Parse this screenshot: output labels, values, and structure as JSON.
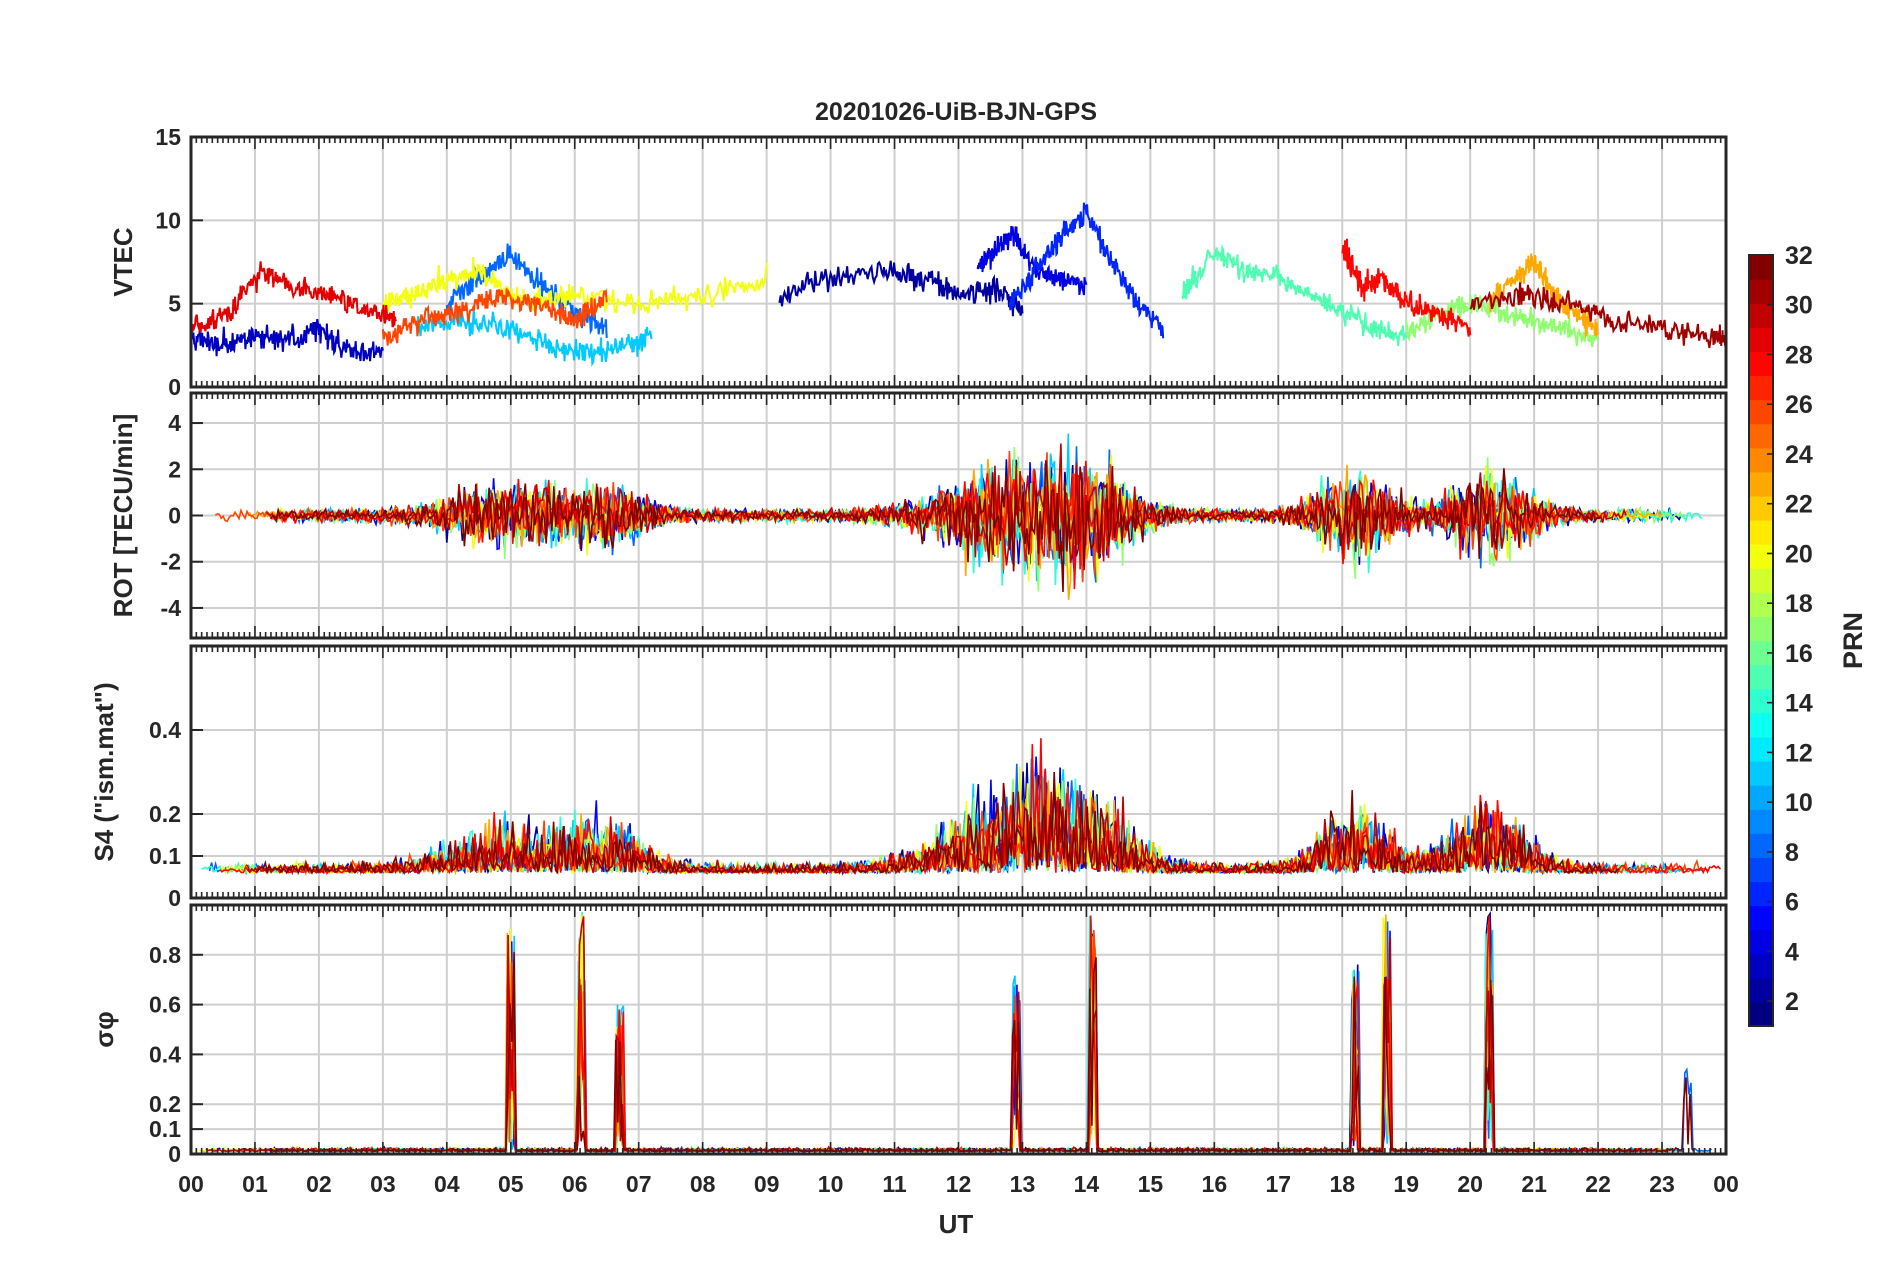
{
  "chart_data": {
    "type": "line",
    "title": "20201026-UiB-BJN-GPS",
    "xlabel": "UT",
    "x_range_hours": [
      0,
      24
    ],
    "x_ticks": [
      "00",
      "01",
      "02",
      "03",
      "04",
      "05",
      "06",
      "07",
      "08",
      "09",
      "10",
      "11",
      "12",
      "13",
      "14",
      "15",
      "16",
      "17",
      "18",
      "19",
      "20",
      "21",
      "22",
      "23",
      "00"
    ],
    "grid": true,
    "colorbar": {
      "label": "PRN",
      "range": [
        1,
        32
      ],
      "ticks": [
        "2",
        "4",
        "6",
        "8",
        "10",
        "12",
        "14",
        "16",
        "18",
        "20",
        "22",
        "24",
        "26",
        "28",
        "30",
        "32"
      ],
      "colormap": "jet",
      "placement": "right"
    },
    "panels": [
      {
        "id": "vtec",
        "ylabel": "VTEC",
        "ylim": [
          0,
          15
        ],
        "y_ticks": [
          "0",
          "5",
          "10",
          "15"
        ],
        "series": [
          {
            "prn": 2,
            "x": [
              9.2,
              10.0,
              10.8,
              11.5,
              12.0,
              12.6,
              13.0
            ],
            "y": [
              5.5,
              6.5,
              7.0,
              6.5,
              5.5,
              6.0,
              4.5
            ]
          },
          {
            "prn": 3,
            "x": [
              0.0,
              0.5,
              1.0,
              1.5,
              2.0,
              2.5,
              3.0
            ],
            "y": [
              3.0,
              2.5,
              3.0,
              2.8,
              3.5,
              2.0,
              2.2
            ]
          },
          {
            "prn": 4,
            "x": [
              12.3,
              12.6,
              12.9,
              13.2,
              13.6,
              14.0
            ],
            "y": [
              7.0,
              8.5,
              9.0,
              7.0,
              6.5,
              6.0
            ]
          },
          {
            "prn": 6,
            "x": [
              12.8,
              13.2,
              13.6,
              14.0,
              14.4,
              14.8,
              15.2
            ],
            "y": [
              5.0,
              7.0,
              9.0,
              10.5,
              7.5,
              5.0,
              3.5
            ]
          },
          {
            "prn": 8,
            "x": [
              4.0,
              4.5,
              5.0,
              5.5,
              6.0,
              6.5
            ],
            "y": [
              5.0,
              6.5,
              8.0,
              6.0,
              4.5,
              3.5
            ]
          },
          {
            "prn": 11,
            "x": [
              3.5,
              4.2,
              5.0,
              5.6,
              6.2,
              6.8,
              7.2
            ],
            "y": [
              3.5,
              4.0,
              3.5,
              2.5,
              2.0,
              2.5,
              3.0
            ]
          },
          {
            "prn": 15,
            "x": [
              15.5,
              16.0,
              16.5,
              17.0,
              17.5,
              18.0,
              18.5,
              19.0
            ],
            "y": [
              5.5,
              8.0,
              7.0,
              6.5,
              5.5,
              4.5,
              3.5,
              3.0
            ]
          },
          {
            "prn": 17,
            "x": [
              19.0,
              19.6,
              20.2,
              20.8,
              21.4,
              22.0
            ],
            "y": [
              3.5,
              4.5,
              5.0,
              4.0,
              3.5,
              3.0
            ]
          },
          {
            "prn": 20,
            "x": [
              3.0,
              3.5,
              4.0,
              4.5,
              5.0,
              5.5,
              6.0,
              7.0,
              8.0,
              9.0
            ],
            "y": [
              5.0,
              5.5,
              6.5,
              7.0,
              5.5,
              5.0,
              5.5,
              5.0,
              5.5,
              6.5
            ]
          },
          {
            "prn": 23,
            "x": [
              20.3,
              20.7,
              21.0,
              21.3,
              21.6,
              22.0
            ],
            "y": [
              5.0,
              6.5,
              7.5,
              5.5,
              4.5,
              3.5
            ]
          },
          {
            "prn": 26,
            "x": [
              3.0,
              3.6,
              4.2,
              4.8,
              5.4,
              6.0,
              6.5
            ],
            "y": [
              3.0,
              4.0,
              4.5,
              5.5,
              5.0,
              4.0,
              5.5
            ]
          },
          {
            "prn": 28,
            "x": [
              18.0,
              18.3,
              18.6,
              19.0,
              19.5,
              20.0
            ],
            "y": [
              8.5,
              6.0,
              6.5,
              5.0,
              4.5,
              3.5
            ]
          },
          {
            "prn": 29,
            "x": [
              0.0,
              0.6,
              1.1,
              1.6,
              2.2,
              2.8,
              3.2
            ],
            "y": [
              3.5,
              4.5,
              7.0,
              6.0,
              5.5,
              4.5,
              4.0
            ]
          },
          {
            "prn": 31,
            "x": [
              20.0,
              20.8,
              21.5,
              22.2,
              23.0,
              23.8,
              24.0
            ],
            "y": [
              5.0,
              5.5,
              5.0,
              4.0,
              3.5,
              3.0,
              3.0
            ]
          }
        ]
      },
      {
        "id": "rot",
        "ylabel": "ROT [TECU/min]",
        "ylim": [
          -5.3,
          5.3
        ],
        "y_ticks": [
          "-4",
          "-2",
          "0",
          "2",
          "4"
        ]
      },
      {
        "id": "s4",
        "ylabel": "S4 (\"ism.mat\")",
        "ylim": [
          0,
          0.6
        ],
        "y_ticks": [
          "0",
          "0.1",
          "0.2",
          "0.4"
        ]
      },
      {
        "id": "sigma_phi",
        "ylabel": "σφ",
        "ylim": [
          0,
          1.0
        ],
        "y_ticks": [
          "0",
          "0.1",
          "0.2",
          "0.4",
          "0.6",
          "0.8"
        ]
      }
    ]
  }
}
